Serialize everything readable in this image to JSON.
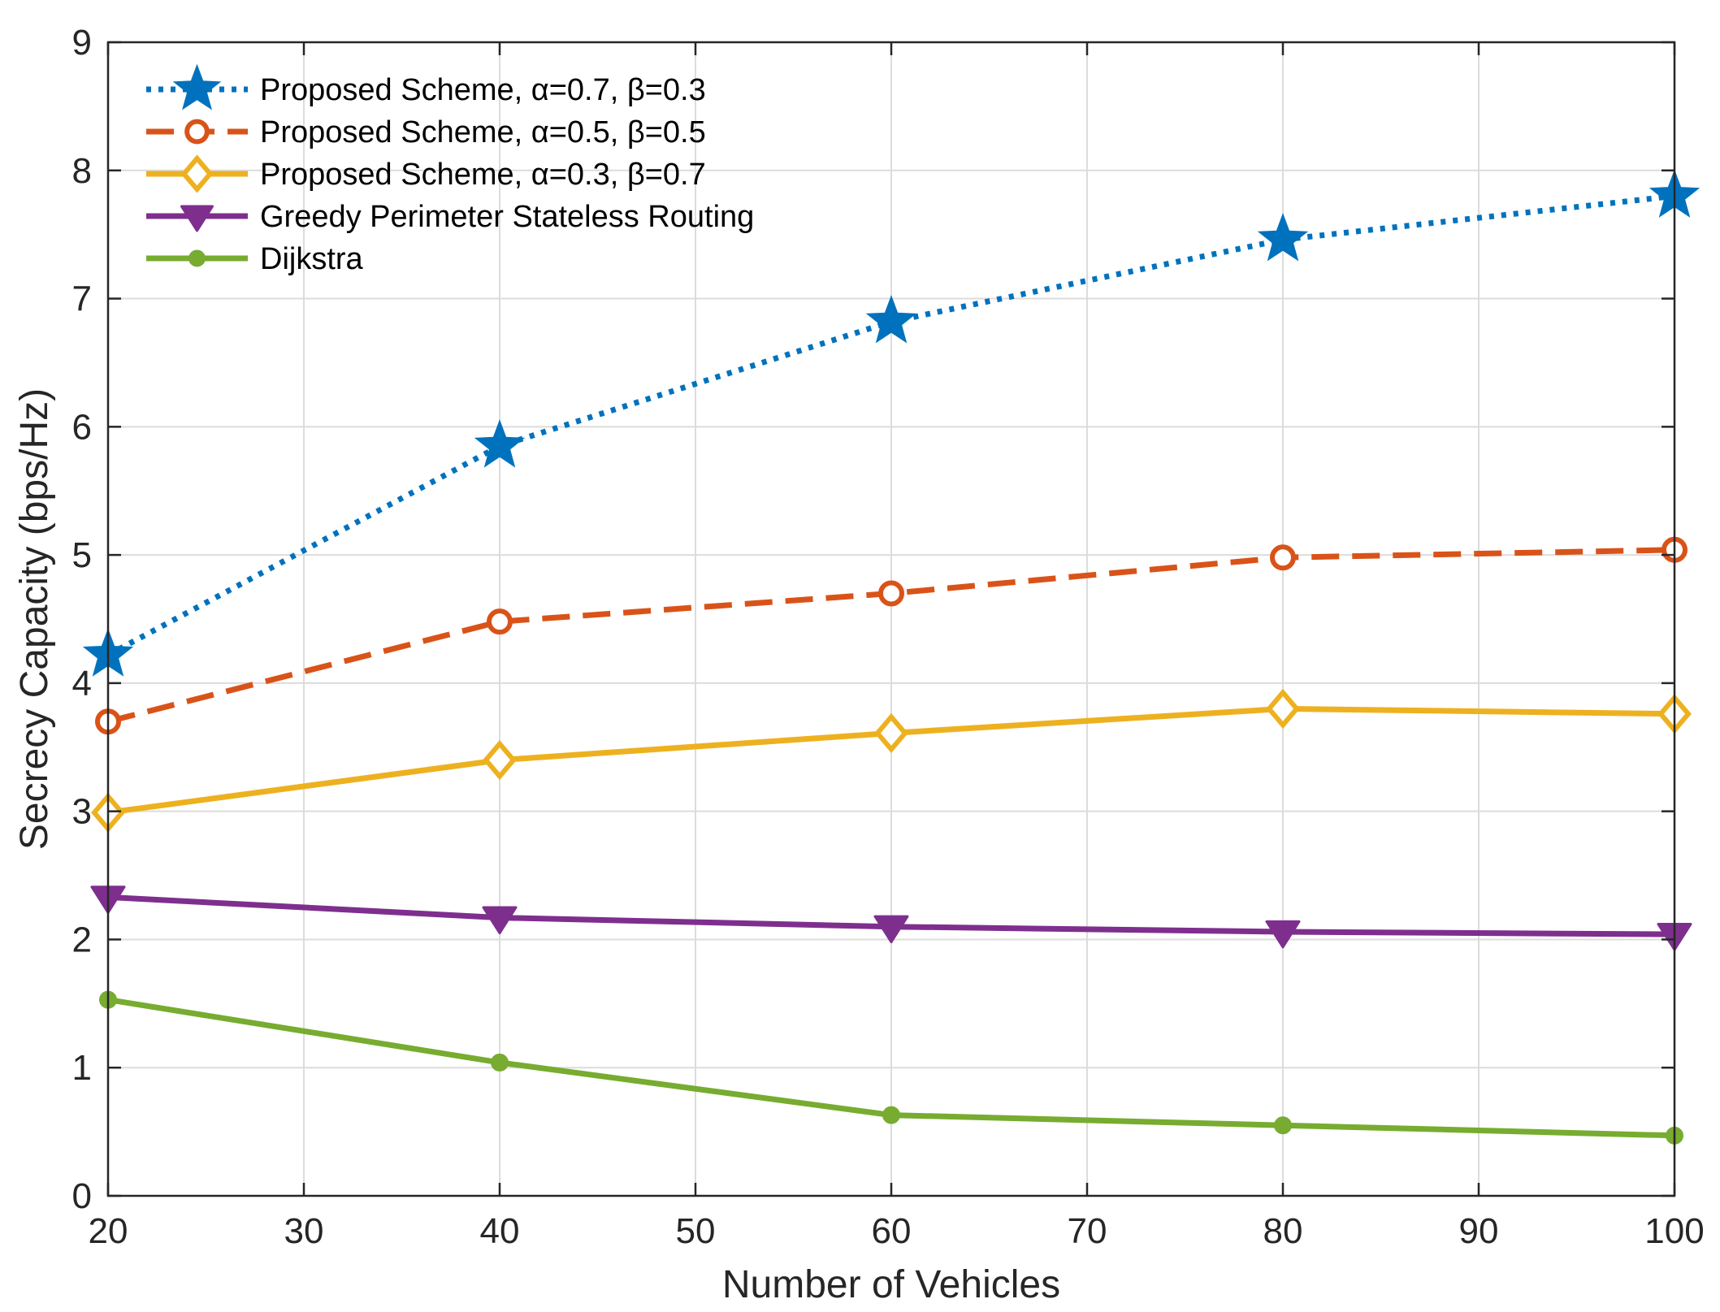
{
  "chart_data": {
    "type": "line",
    "title": "",
    "xlabel": "Number of Vehicles",
    "ylabel": "Secrecy Capacity (bps/Hz)",
    "xlim": [
      20,
      100
    ],
    "ylim": [
      0,
      9
    ],
    "xticks": [
      20,
      30,
      40,
      50,
      60,
      70,
      80,
      90,
      100
    ],
    "yticks": [
      0,
      1,
      2,
      3,
      4,
      5,
      6,
      7,
      8,
      9
    ],
    "grid": true,
    "legend_position": "top-left",
    "x": [
      20,
      40,
      60,
      80,
      100
    ],
    "series": [
      {
        "name": "Proposed Scheme, α=0.7, β=0.3",
        "values": [
          4.22,
          5.85,
          6.82,
          7.46,
          7.8
        ],
        "color": "#0072BD",
        "marker": "star",
        "dash": "dotted"
      },
      {
        "name": "Proposed Scheme, α=0.5, β=0.5",
        "values": [
          3.7,
          4.48,
          4.7,
          4.98,
          5.04
        ],
        "color": "#D95319",
        "marker": "circle",
        "dash": "dashed"
      },
      {
        "name": "Proposed Scheme, α=0.3, β=0.7",
        "values": [
          2.99,
          3.4,
          3.61,
          3.8,
          3.76
        ],
        "color": "#EDB120",
        "marker": "diamond",
        "dash": "solid"
      },
      {
        "name": "Greedy Perimeter Stateless Routing",
        "values": [
          2.33,
          2.17,
          2.1,
          2.06,
          2.04
        ],
        "color": "#7E2F8E",
        "marker": "triangle-down",
        "dash": "solid"
      },
      {
        "name": "Dijkstra",
        "values": [
          1.53,
          1.04,
          0.63,
          0.55,
          0.47
        ],
        "color": "#77AC30",
        "marker": "dot",
        "dash": "solid"
      }
    ]
  }
}
